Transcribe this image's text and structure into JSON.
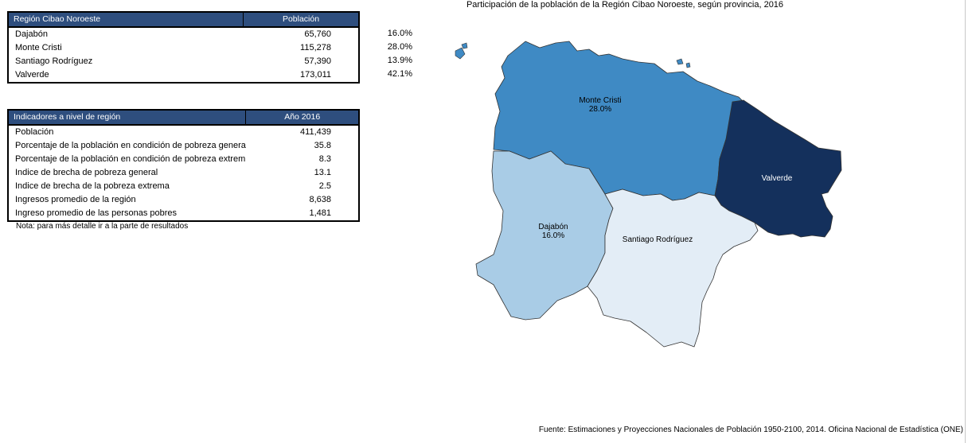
{
  "population_table": {
    "header_region": "Región Cibao Noroeste",
    "header_population": "Población",
    "rows": [
      {
        "province": "Dajabón",
        "population": "65,760",
        "percent": "16.0%"
      },
      {
        "province": "Monte Cristi",
        "population": "115,278",
        "percent": "28.0%"
      },
      {
        "province": "Santiago Rodríguez",
        "population": "57,390",
        "percent": "13.9%"
      },
      {
        "province": "Valverde",
        "population": "173,011",
        "percent": "42.1%"
      }
    ]
  },
  "indicators_table": {
    "header_indicator": "Indicadores a nivel de región",
    "header_year": "Año 2016",
    "rows": [
      {
        "label": "Población",
        "value": "411,439"
      },
      {
        "label": "Porcentaje de la población en condición de pobreza genera",
        "value": "35.8"
      },
      {
        "label": "Porcentaje de la población en condición de pobreza extrem",
        "value": "8.3"
      },
      {
        "label": "Indice de brecha de pobreza general",
        "value": "13.1"
      },
      {
        "label": "Indice de  brecha de la pobreza extrema",
        "value": "2.5"
      },
      {
        "label": "Ingresos promedio de la región",
        "value": "8,638"
      },
      {
        "label": "Ingreso promedio de las personas pobres",
        "value": "1,481"
      }
    ]
  },
  "note": "Nota: para más detalle ir a la parte de resultados",
  "map": {
    "title": "Participación de la población de la Región Cibao Noroeste, según provincia, 2016",
    "provinces": [
      {
        "name": "Monte Cristi",
        "label": "Monte Cristi",
        "percent_label": "28.0%",
        "color": "#3f8ac4"
      },
      {
        "name": "Valverde",
        "label": "Valverde",
        "percent_label": "",
        "color": "#14305c"
      },
      {
        "name": "Dajabón",
        "label": "Dajabón",
        "percent_label": "16.0%",
        "color": "#a9cce6"
      },
      {
        "name": "Santiago Rodríguez",
        "label": "Santiago Rodríguez",
        "percent_label": "",
        "color": "#e3edf6"
      }
    ]
  },
  "source": "Fuente: Estimaciones y Proyecciones Nacionales de Población 1950-2100, 2014. Oficina Nacional de Estadística (ONE)"
}
